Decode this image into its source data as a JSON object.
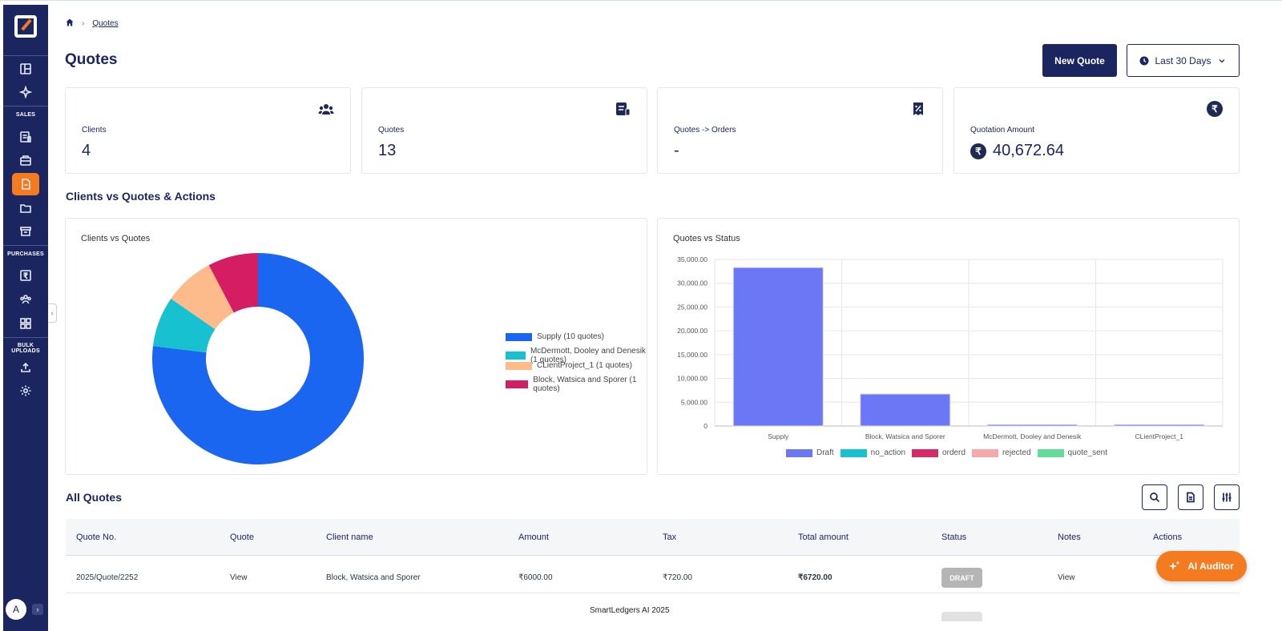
{
  "breadcrumb": {
    "current": "Quotes"
  },
  "page": {
    "title": "Quotes"
  },
  "header": {
    "new_quote_label": "New Quote",
    "date_range_label": "Last 30 Days"
  },
  "sidebar": {
    "section_sales": "SALES",
    "section_purchases": "PURCHASES",
    "section_bulk": "BULK UPLOADS",
    "avatar_initial": "A",
    "active_item": "quotes"
  },
  "stats": [
    {
      "label": "Clients",
      "value": "4",
      "icon": "users-icon"
    },
    {
      "label": "Quotes",
      "value": "13",
      "icon": "clipboard-icon"
    },
    {
      "label": "Quotes -> Orders",
      "value": "-",
      "icon": "percent-receipt-icon"
    },
    {
      "label": "Quotation Amount",
      "value": "40,672.64",
      "icon": "rupee-icon"
    }
  ],
  "rupee_symbol": "₹",
  "section_charts_title": "Clients vs Quotes & Actions",
  "chart_data": [
    {
      "type": "pie",
      "title": "Clients vs Quotes",
      "donut": true,
      "legend_position": "right",
      "slices": [
        {
          "label": "Supply (10 quotes)",
          "value": 10,
          "color": "#1a66f0"
        },
        {
          "label": "McDermott, Dooley and Denesik (1 quotes)",
          "value": 1,
          "color": "#17c1cf"
        },
        {
          "label": "CLientProject_1 (1 quotes)",
          "value": 1,
          "color": "#fdbb8c"
        },
        {
          "label": "Block, Watsica and Sporer (1 quotes)",
          "value": 1,
          "color": "#d41d63"
        }
      ]
    },
    {
      "type": "bar",
      "title": "Quotes vs Status",
      "categories": [
        "Supply",
        "Block, Watsica and Sporer",
        "McDermott, Dooley and Denesik",
        "CLientProject_1"
      ],
      "ylim": [
        0,
        35000
      ],
      "yticks": [
        "0",
        "5,000.00",
        "10,000.00",
        "15,000.00",
        "20,000.00",
        "25,000.00",
        "30,000.00",
        "35,000.00"
      ],
      "grid": true,
      "legend_position": "bottom",
      "series": [
        {
          "name": "Draft",
          "color": "#6b77f5",
          "values": [
            33300,
            6720,
            300,
            300
          ]
        },
        {
          "name": "no_action",
          "color": "#17c1cf",
          "values": [
            0,
            0,
            0,
            0
          ]
        },
        {
          "name": "orderd",
          "color": "#d72a66",
          "values": [
            0,
            0,
            0,
            0
          ]
        },
        {
          "name": "rejected",
          "color": "#f7a8a8",
          "values": [
            0,
            0,
            0,
            0
          ]
        },
        {
          "name": "quote_sent",
          "color": "#62dc98",
          "values": [
            0,
            0,
            0,
            0
          ]
        }
      ]
    }
  ],
  "table": {
    "title": "All Quotes",
    "columns": [
      "Quote No.",
      "Quote",
      "Client name",
      "Amount",
      "Tax",
      "Total amount",
      "Status",
      "Notes",
      "Actions"
    ],
    "rows": [
      {
        "quote_no": "2025/Quote/2252",
        "quote": "View",
        "client": "Block, Watsica and Sporer",
        "amount": "₹6000.00",
        "tax": "₹720.00",
        "total": "₹6720.00",
        "status": "DRAFT",
        "notes": "View"
      }
    ]
  },
  "footer": "SmartLedgers AI 2025",
  "ai_button_label": "AI Auditor"
}
